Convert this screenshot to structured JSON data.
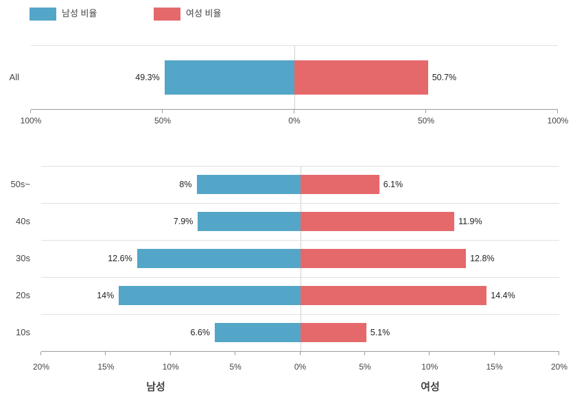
{
  "legend": {
    "male": "남성 비율",
    "female": "여성 비율"
  },
  "colors": {
    "male": "#53a6c7",
    "female": "#e5696b",
    "grid": "#e0e0e0",
    "axis": "#9a9a9a",
    "center_line": "#cfcfcf",
    "tick_text": "#424242",
    "value_text": "#212121"
  },
  "chart_data": [
    {
      "type": "bar",
      "orientation": "diverging-horizontal",
      "title": "",
      "categories": [
        "All"
      ],
      "series": [
        {
          "name": "남성 비율",
          "side": "left",
          "values": [
            49.3
          ]
        },
        {
          "name": "여성 비율",
          "side": "right",
          "values": [
            50.7
          ]
        }
      ],
      "value_labels": {
        "male": [
          "49.3%"
        ],
        "female": [
          "50.7%"
        ]
      },
      "axis_max": 100,
      "tick_step": 50,
      "tick_labels": [
        "100%",
        "50%",
        "0%",
        "50%",
        "100%"
      ],
      "grid": true,
      "legend_position": "top"
    },
    {
      "type": "bar",
      "orientation": "diverging-horizontal",
      "title": "",
      "categories": [
        "50s~",
        "40s",
        "30s",
        "20s",
        "10s"
      ],
      "series": [
        {
          "name": "남성 비율",
          "side": "left",
          "values": [
            8,
            7.9,
            12.6,
            14,
            6.6
          ]
        },
        {
          "name": "여성 비율",
          "side": "right",
          "values": [
            6.1,
            11.9,
            12.8,
            14.4,
            5.1
          ]
        }
      ],
      "value_labels": {
        "male": [
          "8%",
          "7.9%",
          "12.6%",
          "14%",
          "6.6%"
        ],
        "female": [
          "6.1%",
          "11.9%",
          "12.8%",
          "14.4%",
          "5.1%"
        ]
      },
      "axis_max": 20,
      "tick_step": 5,
      "tick_labels": [
        "20%",
        "15%",
        "10%",
        "5%",
        "0%",
        "5%",
        "10%",
        "15%",
        "20%"
      ],
      "xlabel_left": "남성",
      "xlabel_right": "여성",
      "grid": true
    }
  ]
}
